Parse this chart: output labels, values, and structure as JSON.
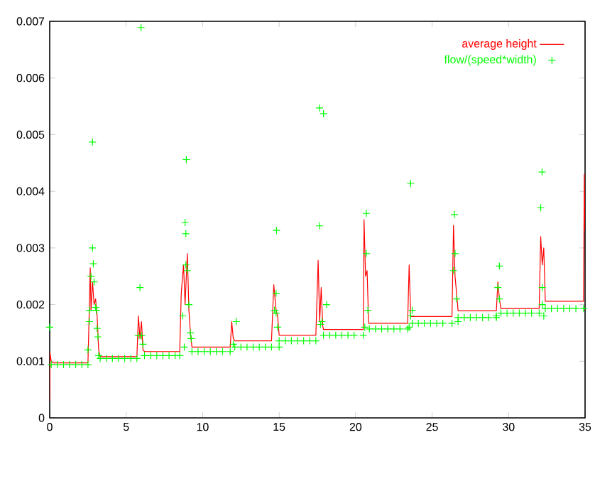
{
  "chart_data": {
    "type": "line",
    "xlim": [
      0,
      35
    ],
    "ylim": [
      0,
      0.007
    ],
    "xticks": [
      0,
      5,
      10,
      15,
      20,
      25,
      30,
      35
    ],
    "yticks": [
      0,
      0.001,
      0.002,
      0.003,
      0.004,
      0.005,
      0.006,
      0.007
    ],
    "legend": "top right",
    "grid": false,
    "series": [
      {
        "name": "average height",
        "color": "#ff0000",
        "marker": "none",
        "line_style": "solid",
        "x": [
          0,
          0.02,
          0.1,
          0.2,
          2.5,
          2.55,
          2.65,
          2.7,
          2.8,
          2.9,
          3.0,
          3.1,
          3.2,
          3.3,
          5.7,
          5.8,
          5.9,
          6.0,
          6.1,
          6.2,
          8.5,
          8.6,
          8.75,
          8.85,
          9.0,
          9.1,
          9.2,
          9.3,
          11.8,
          11.9,
          12.0,
          12.1,
          14.5,
          14.65,
          14.8,
          14.9,
          15.0,
          17.4,
          17.55,
          17.65,
          17.75,
          17.85,
          17.9,
          20.5,
          20.55,
          20.65,
          20.75,
          20.85,
          23.4,
          23.5,
          23.6,
          26.3,
          26.4,
          26.5,
          26.6,
          26.7,
          29.2,
          29.3,
          29.4,
          29.5,
          32.0,
          32.1,
          32.2,
          32.3,
          32.4,
          34.9,
          34.95,
          35
        ],
        "values": [
          0.0003,
          0.00115,
          0.001,
          0.00097,
          0.00097,
          0.0015,
          0.00265,
          0.0019,
          0.0024,
          0.002,
          0.0021,
          0.0018,
          0.0012,
          0.00108,
          0.00108,
          0.0018,
          0.0014,
          0.0017,
          0.0012,
          0.00117,
          0.00117,
          0.0022,
          0.0027,
          0.002,
          0.0029,
          0.0019,
          0.0015,
          0.00125,
          0.00125,
          0.0017,
          0.0014,
          0.00136,
          0.00136,
          0.00235,
          0.0019,
          0.0018,
          0.00146,
          0.00146,
          0.00278,
          0.0017,
          0.0023,
          0.00162,
          0.00156,
          0.00156,
          0.0035,
          0.0025,
          0.0026,
          0.00167,
          0.00167,
          0.0027,
          0.00179,
          0.00179,
          0.0034,
          0.0025,
          0.0022,
          0.00189,
          0.00189,
          0.0024,
          0.0021,
          0.00193,
          0.00193,
          0.0032,
          0.0027,
          0.003,
          0.00206,
          0.00206,
          0.0043,
          0.0033
        ]
      },
      {
        "name": "flow/(speed*width)",
        "type": "scatter",
        "color": "#00ff00",
        "marker": "cross",
        "x": [
          0,
          2.8,
          5.97,
          8.93,
          8.85,
          8.9,
          14.83,
          17.64,
          17.9,
          23.6,
          17.64,
          20.7,
          26.46,
          32.19,
          32.1,
          29.4,
          2.5,
          2.6,
          2.6,
          2.7,
          2.8,
          2.85,
          2.9,
          3.0,
          3.05,
          3.1,
          3.15,
          3.2,
          5.9,
          5.8,
          6.0,
          6.1,
          8.7,
          8.9,
          9.0,
          9.1,
          9.2,
          9.25,
          8.8,
          12.2,
          12.0,
          14.8,
          14.8,
          14.9,
          15.0,
          14.7,
          18.1,
          17.8,
          17.7,
          20.7,
          20.8,
          20.6,
          23.7,
          23.6,
          23.5,
          26.4,
          26.5,
          26.6,
          26.7,
          29.3,
          29.4,
          29.2,
          32.2,
          32.2,
          32.3,
          0.1,
          0.5,
          0.9,
          1.3,
          1.7,
          2.1,
          2.5,
          3.3,
          3.7,
          4.1,
          4.5,
          4.9,
          5.3,
          5.7,
          6.2,
          6.6,
          7.0,
          7.4,
          7.8,
          8.2,
          8.5,
          9.3,
          9.7,
          10.1,
          10.5,
          10.9,
          11.3,
          11.8,
          12.1,
          12.5,
          12.9,
          13.3,
          13.7,
          14.1,
          14.5,
          15.0,
          15.4,
          15.8,
          16.2,
          16.6,
          17.0,
          17.4,
          17.9,
          18.3,
          18.7,
          19.1,
          19.5,
          19.9,
          20.5,
          20.9,
          21.3,
          21.7,
          22.1,
          22.5,
          22.9,
          23.4,
          23.7,
          24.1,
          24.5,
          24.9,
          25.3,
          25.7,
          26.3,
          26.7,
          27.1,
          27.5,
          27.9,
          28.3,
          28.7,
          29.2,
          29.5,
          29.9,
          30.3,
          30.7,
          31.1,
          31.5,
          32.0,
          32.4,
          32.8,
          33.2,
          33.6,
          34.0,
          34.4,
          34.9
        ],
        "values": [
          0.0016,
          0.00487,
          0.00689,
          0.00456,
          0.00345,
          0.00325,
          0.00331,
          0.00547,
          0.00537,
          0.00414,
          0.00339,
          0.00361,
          0.00359,
          0.00434,
          0.00371,
          0.00268,
          0.0012,
          0.0017,
          0.0019,
          0.0025,
          0.003,
          0.00272,
          0.0024,
          0.00195,
          0.0019,
          0.00158,
          0.00143,
          0.0011,
          0.0023,
          0.00145,
          0.00145,
          0.0013,
          0.0018,
          0.0027,
          0.0026,
          0.002,
          0.0015,
          0.0014,
          0.00125,
          0.0017,
          0.0013,
          0.0022,
          0.00185,
          0.0016,
          0.00125,
          0.0019,
          0.002,
          0.0017,
          0.00165,
          0.0029,
          0.0019,
          0.0016,
          0.0019,
          0.0018,
          0.0016,
          0.0026,
          0.0029,
          0.0021,
          0.0017,
          0.0023,
          0.0021,
          0.0018,
          0.0023,
          0.002,
          0.0018,
          0.00094,
          0.00094,
          0.00094,
          0.00094,
          0.00094,
          0.00094,
          0.00094,
          0.00105,
          0.00105,
          0.00105,
          0.00105,
          0.00105,
          0.00105,
          0.00105,
          0.0011,
          0.0011,
          0.0011,
          0.0011,
          0.0011,
          0.0011,
          0.0011,
          0.00117,
          0.00117,
          0.00117,
          0.00117,
          0.00117,
          0.00117,
          0.00117,
          0.00125,
          0.00125,
          0.00125,
          0.00125,
          0.00125,
          0.00125,
          0.00125,
          0.00136,
          0.00136,
          0.00136,
          0.00136,
          0.00136,
          0.00136,
          0.00136,
          0.00146,
          0.00146,
          0.00146,
          0.00146,
          0.00146,
          0.00146,
          0.00146,
          0.00157,
          0.00157,
          0.00157,
          0.00157,
          0.00157,
          0.00157,
          0.00157,
          0.00167,
          0.00167,
          0.00167,
          0.00167,
          0.00167,
          0.00167,
          0.00167,
          0.00177,
          0.00177,
          0.00177,
          0.00177,
          0.00177,
          0.00177,
          0.00177,
          0.00185,
          0.00185,
          0.00185,
          0.00185,
          0.00185,
          0.00185,
          0.00185,
          0.00193,
          0.00193,
          0.00193,
          0.00193,
          0.00193,
          0.00193,
          0.00193
        ]
      }
    ]
  }
}
